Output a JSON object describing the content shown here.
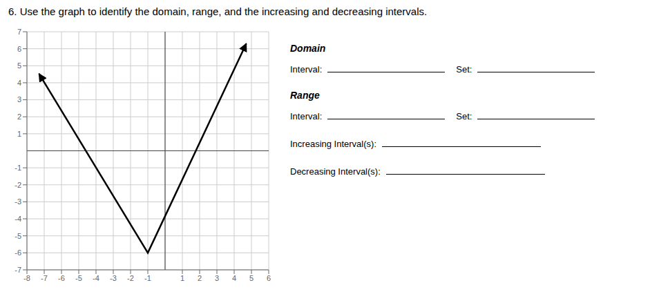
{
  "chart_data": {
    "type": "line",
    "title": "6.  Use the graph to identify the domain, range, and the increasing and decreasing intervals.",
    "x": [
      -7.3,
      -1,
      4.7
    ],
    "values": [
      4.53,
      -6,
      6.3
    ],
    "color": "#000000",
    "xlim": [
      -8,
      6
    ],
    "ylim": [
      -7,
      7
    ],
    "xticks": [
      -8,
      -7,
      -6,
      -5,
      -4,
      -3,
      -2,
      -1,
      1,
      2,
      3,
      4,
      5,
      6
    ],
    "yticks": [
      -7,
      -6,
      -5,
      -4,
      -3,
      -2,
      -1,
      1,
      2,
      3,
      4,
      5,
      6,
      7
    ],
    "grid": true,
    "annotations": [
      "Domain",
      "Interval:",
      "Set:",
      "Range",
      "Interval:",
      "Set:",
      "Increasing Interval(s):",
      "Decreasing Interval(s):"
    ]
  }
}
